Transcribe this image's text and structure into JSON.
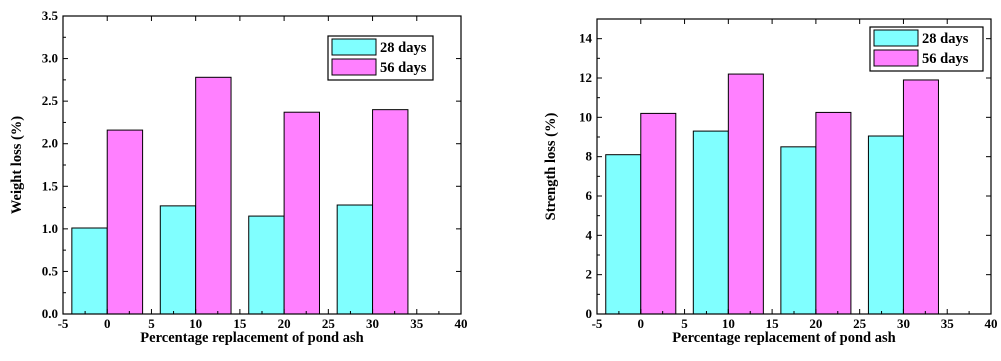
{
  "colors": {
    "series_28": "#80FFFF",
    "series_56": "#FF80FF",
    "axis": "#000000",
    "background": "#FFFFFF"
  },
  "chart_data": [
    {
      "type": "bar",
      "xlabel": "Percentage replacement of pond ash",
      "ylabel": "Weight loss (%)",
      "xlim": [
        -5,
        40
      ],
      "ylim": [
        0,
        3.5
      ],
      "xticks": [
        -5,
        0,
        5,
        10,
        15,
        20,
        25,
        30,
        35,
        40
      ],
      "yticks": [
        0.0,
        0.5,
        1.0,
        1.5,
        2.0,
        2.5,
        3.0,
        3.5
      ],
      "ytick_labels": [
        "0.0",
        "0.5",
        "1.0",
        "1.5",
        "2.0",
        "2.5",
        "3.0",
        "3.5"
      ],
      "categories": [
        0,
        10,
        20,
        30
      ],
      "grid": false,
      "legend_position": "top-right",
      "series": [
        {
          "name": "28 days",
          "values": [
            1.01,
            1.27,
            1.15,
            1.28
          ]
        },
        {
          "name": "56 days",
          "values": [
            2.16,
            2.78,
            2.37,
            2.4
          ]
        }
      ]
    },
    {
      "type": "bar",
      "xlabel": "Percentage replacement of pond ash",
      "ylabel": "Strength loss (%)",
      "xlim": [
        -5,
        40
      ],
      "ylim": [
        0,
        15
      ],
      "xticks": [
        -5,
        0,
        5,
        10,
        15,
        20,
        25,
        30,
        35,
        40
      ],
      "yticks": [
        0,
        2,
        4,
        6,
        8,
        10,
        12,
        14
      ],
      "ytick_labels": [
        "0",
        "2",
        "4",
        "6",
        "8",
        "10",
        "12",
        "14"
      ],
      "categories": [
        0,
        10,
        20,
        30
      ],
      "grid": false,
      "legend_position": "top-right",
      "series": [
        {
          "name": "28 days",
          "values": [
            8.1,
            9.3,
            8.5,
            9.05
          ]
        },
        {
          "name": "56 days",
          "values": [
            10.2,
            12.2,
            10.25,
            11.9
          ]
        }
      ]
    }
  ]
}
